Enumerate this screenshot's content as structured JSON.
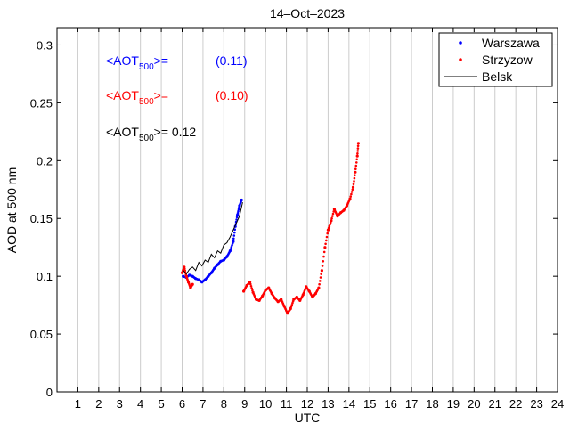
{
  "chart_data": {
    "type": "scatter",
    "title": "14–Oct–2023",
    "xlabel": "UTC",
    "ylabel": "AOD at 500 nm",
    "xlim": [
      0,
      24
    ],
    "ylim": [
      0,
      0.315
    ],
    "xticks": [
      "1",
      "2",
      "3",
      "4",
      "5",
      "6",
      "7",
      "8",
      "9",
      "10",
      "11",
      "12",
      "13",
      "14",
      "15",
      "16",
      "17",
      "18",
      "19",
      "20",
      "21",
      "22",
      "23",
      "24"
    ],
    "yticks": [
      "0",
      "0.05",
      "0.1",
      "0.15",
      "0.2",
      "0.25",
      "0.3"
    ],
    "grid": "vertical",
    "legend_position": "top-right",
    "legend": [
      "Warszawa",
      "Strzyzow",
      "Belsk"
    ],
    "annotations": [
      {
        "prefix": "<AOT",
        "sub": "500",
        "suffix": ">=",
        "value": "(0.11)",
        "color": "#0000ff"
      },
      {
        "prefix": "<AOT",
        "sub": "500",
        "suffix": ">=",
        "value": "(0.10)",
        "color": "#ff0000"
      },
      {
        "prefix": "<AOT",
        "sub": "500",
        "suffix": ">= 0.12",
        "value": "",
        "color": "#000000"
      }
    ],
    "series": [
      {
        "name": "Warszawa",
        "style": "dots",
        "color": "#0000ff",
        "x": [
          6.05,
          6.2,
          6.35,
          6.5,
          6.65,
          6.8,
          6.95,
          7.1,
          7.25,
          7.4,
          7.55,
          7.7,
          7.85,
          8.0,
          8.15,
          8.3,
          8.45,
          8.55,
          8.65,
          8.75,
          8.85
        ],
        "y": [
          0.1,
          0.099,
          0.101,
          0.1,
          0.098,
          0.097,
          0.095,
          0.097,
          0.1,
          0.103,
          0.107,
          0.11,
          0.113,
          0.114,
          0.117,
          0.122,
          0.13,
          0.143,
          0.153,
          0.161,
          0.166
        ]
      },
      {
        "name": "Strzyzow",
        "style": "dots",
        "color": "#ff0000",
        "x": [
          6.0,
          6.1,
          6.2,
          6.3,
          6.4,
          6.5,
          8.95,
          9.1,
          9.25,
          9.4,
          9.55,
          9.7,
          9.85,
          10.0,
          10.15,
          10.3,
          10.45,
          10.6,
          10.75,
          10.9,
          11.05,
          11.2,
          11.35,
          11.5,
          11.65,
          11.8,
          11.95,
          12.1,
          12.25,
          12.4,
          12.55,
          12.7,
          12.85,
          13.0,
          13.15,
          13.3,
          13.45,
          13.6,
          13.75,
          13.9,
          14.05,
          14.2,
          14.3,
          14.4,
          14.45
        ],
        "y": [
          0.103,
          0.108,
          0.1,
          0.095,
          0.09,
          0.093,
          0.087,
          0.092,
          0.095,
          0.086,
          0.08,
          0.079,
          0.083,
          0.088,
          0.09,
          0.085,
          0.081,
          0.078,
          0.08,
          0.074,
          0.068,
          0.072,
          0.08,
          0.082,
          0.079,
          0.084,
          0.091,
          0.087,
          0.082,
          0.085,
          0.09,
          0.105,
          0.125,
          0.14,
          0.148,
          0.158,
          0.152,
          0.155,
          0.157,
          0.161,
          0.167,
          0.177,
          0.19,
          0.204,
          0.215
        ]
      },
      {
        "name": "Belsk",
        "style": "line",
        "color": "#000000",
        "x": [
          6.05,
          6.2,
          6.35,
          6.5,
          6.65,
          6.8,
          6.95,
          7.1,
          7.25,
          7.4,
          7.55,
          7.7,
          7.85,
          8.0,
          8.15,
          8.3,
          8.45,
          8.6,
          8.75,
          8.9
        ],
        "y": [
          0.105,
          0.102,
          0.106,
          0.108,
          0.105,
          0.112,
          0.109,
          0.114,
          0.112,
          0.119,
          0.116,
          0.122,
          0.12,
          0.127,
          0.129,
          0.134,
          0.14,
          0.146,
          0.152,
          0.164
        ]
      }
    ]
  }
}
